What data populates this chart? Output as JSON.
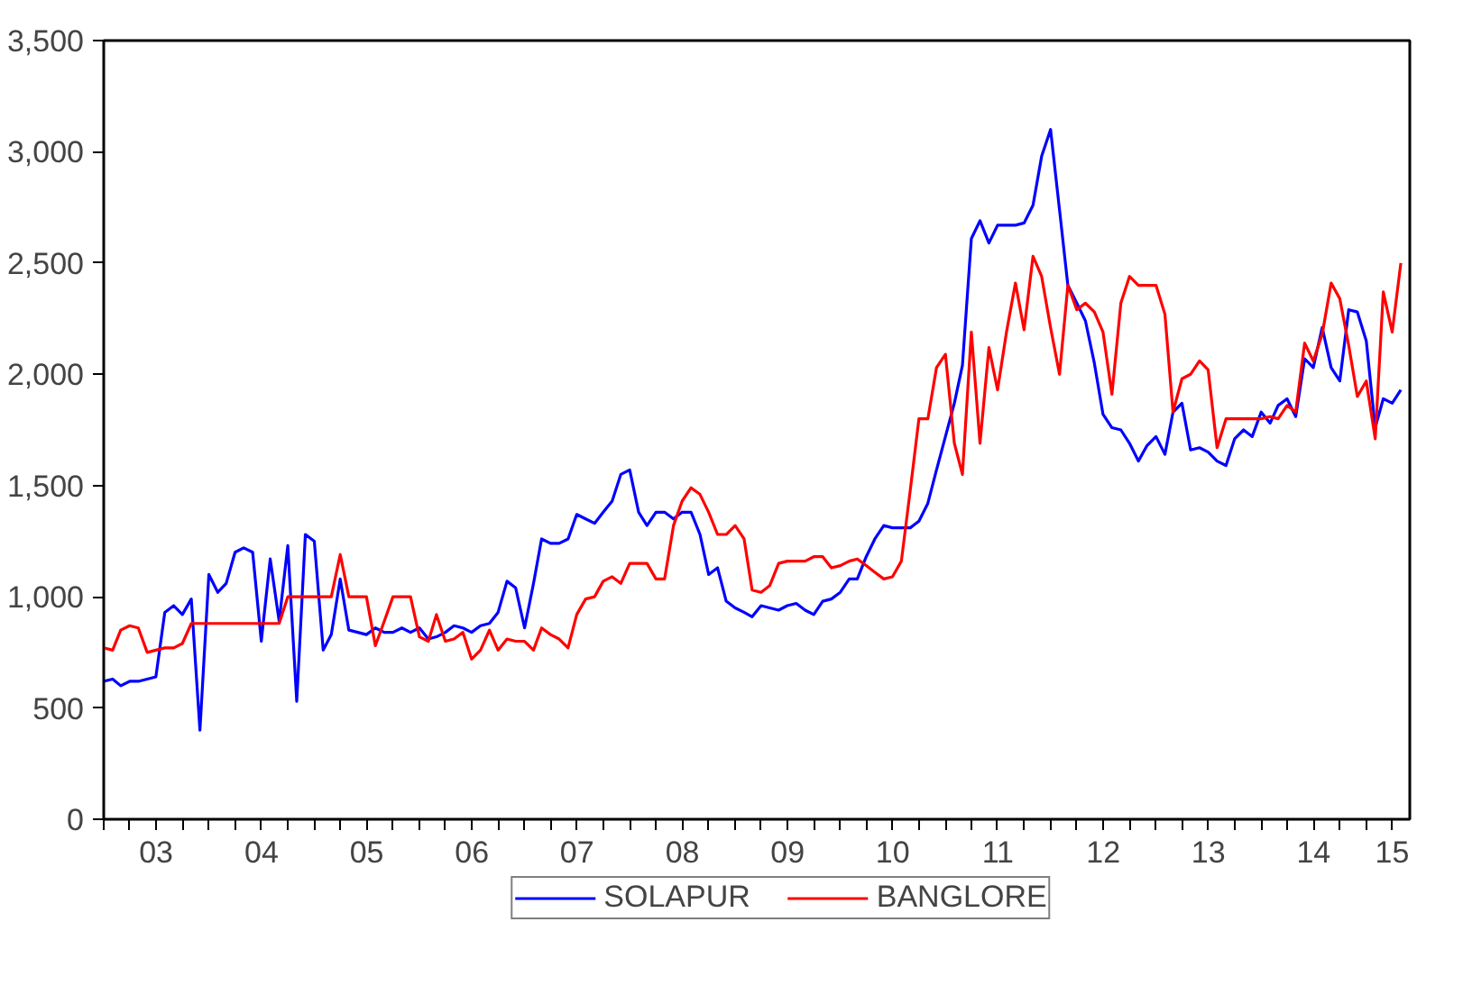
{
  "chart_data": {
    "type": "line",
    "x": [
      "2003-01",
      "2003-02",
      "2003-03",
      "2003-04",
      "2003-05",
      "2003-06",
      "2003-07",
      "2003-08",
      "2003-09",
      "2003-10",
      "2003-11",
      "2003-12",
      "2004-01",
      "2004-02",
      "2004-03",
      "2004-04",
      "2004-05",
      "2004-06",
      "2004-07",
      "2004-08",
      "2004-09",
      "2004-10",
      "2004-11",
      "2004-12",
      "2005-01",
      "2005-02",
      "2005-03",
      "2005-04",
      "2005-05",
      "2005-06",
      "2005-07",
      "2005-08",
      "2005-09",
      "2005-10",
      "2005-11",
      "2005-12",
      "2006-01",
      "2006-02",
      "2006-03",
      "2006-04",
      "2006-05",
      "2006-06",
      "2006-07",
      "2006-08",
      "2006-09",
      "2006-10",
      "2006-11",
      "2006-12",
      "2007-01",
      "2007-02",
      "2007-03",
      "2007-04",
      "2007-05",
      "2007-06",
      "2007-07",
      "2007-08",
      "2007-09",
      "2007-10",
      "2007-11",
      "2007-12",
      "2008-01",
      "2008-02",
      "2008-03",
      "2008-04",
      "2008-05",
      "2008-06",
      "2008-07",
      "2008-08",
      "2008-09",
      "2008-10",
      "2008-11",
      "2008-12",
      "2009-01",
      "2009-02",
      "2009-03",
      "2009-04",
      "2009-05",
      "2009-06",
      "2009-07",
      "2009-08",
      "2009-09",
      "2009-10",
      "2009-11",
      "2009-12",
      "2010-01",
      "2010-02",
      "2010-03",
      "2010-04",
      "2010-05",
      "2010-06",
      "2010-07",
      "2010-08",
      "2010-09",
      "2010-10",
      "2010-11",
      "2010-12",
      "2011-01",
      "2011-02",
      "2011-03",
      "2011-04",
      "2011-05",
      "2011-06",
      "2011-07",
      "2011-08",
      "2011-09",
      "2011-10",
      "2011-11",
      "2011-12",
      "2012-01",
      "2012-02",
      "2012-03",
      "2012-04",
      "2012-05",
      "2012-06",
      "2012-07",
      "2012-08",
      "2012-09",
      "2012-10",
      "2012-11",
      "2012-12",
      "2013-01",
      "2013-02",
      "2013-03",
      "2013-04",
      "2013-05",
      "2013-06",
      "2013-07",
      "2013-08",
      "2013-09",
      "2013-10",
      "2013-11",
      "2013-12",
      "2014-01",
      "2014-02",
      "2014-03",
      "2014-04",
      "2014-05",
      "2014-06",
      "2014-07",
      "2014-08",
      "2014-09",
      "2014-10",
      "2014-11",
      "2014-12",
      "2015-01",
      "2015-02",
      "2015-03",
      "2015-04",
      "2015-05"
    ],
    "series": [
      {
        "name": "SOLAPUR",
        "color": "#0000ff",
        "values": [
          620,
          630,
          600,
          620,
          620,
          630,
          640,
          930,
          960,
          920,
          990,
          400,
          1100,
          1020,
          1060,
          1200,
          1220,
          1200,
          800,
          1170,
          890,
          1230,
          530,
          1280,
          1250,
          760,
          830,
          1080,
          850,
          840,
          830,
          860,
          840,
          840,
          860,
          840,
          860,
          810,
          820,
          840,
          870,
          860,
          840,
          870,
          880,
          930,
          1070,
          1040,
          860,
          1060,
          1260,
          1240,
          1240,
          1260,
          1370,
          1350,
          1330,
          1380,
          1430,
          1550,
          1570,
          1380,
          1320,
          1380,
          1380,
          1350,
          1380,
          1380,
          1280,
          1100,
          1130,
          980,
          950,
          930,
          910,
          960,
          950,
          940,
          960,
          970,
          940,
          920,
          980,
          990,
          1020,
          1080,
          1080,
          1180,
          1260,
          1320,
          1310,
          1310,
          1310,
          1340,
          1420,
          1570,
          1720,
          1870,
          2040,
          2610,
          2690,
          2590,
          2670,
          2670,
          2670,
          2680,
          2760,
          2980,
          3100,
          2740,
          2400,
          2320,
          2240,
          2050,
          1820,
          1760,
          1750,
          1690,
          1610,
          1680,
          1720,
          1640,
          1830,
          1870,
          1660,
          1670,
          1650,
          1610,
          1590,
          1710,
          1750,
          1720,
          1830,
          1780,
          1860,
          1890,
          1810,
          2070,
          2030,
          2210,
          2030,
          1970,
          2290,
          2280,
          2150,
          1760,
          1890,
          1870,
          1930
        ]
      },
      {
        "name": "BANGLORE",
        "color": "#ff0000",
        "values": [
          770,
          760,
          850,
          870,
          860,
          750,
          760,
          770,
          770,
          790,
          880,
          880,
          880,
          880,
          880,
          880,
          880,
          880,
          880,
          880,
          880,
          1000,
          1000,
          1000,
          1000,
          1000,
          1000,
          1190,
          1000,
          1000,
          1000,
          780,
          890,
          1000,
          1000,
          1000,
          820,
          800,
          920,
          800,
          810,
          840,
          720,
          760,
          850,
          760,
          810,
          800,
          800,
          760,
          860,
          830,
          810,
          770,
          920,
          990,
          1000,
          1070,
          1090,
          1060,
          1150,
          1150,
          1150,
          1080,
          1080,
          1320,
          1430,
          1490,
          1460,
          1380,
          1280,
          1280,
          1320,
          1260,
          1030,
          1020,
          1050,
          1150,
          1160,
          1160,
          1160,
          1180,
          1180,
          1130,
          1140,
          1160,
          1170,
          1140,
          1110,
          1080,
          1090,
          1160,
          1480,
          1800,
          1800,
          2030,
          2090,
          1690,
          1550,
          2190,
          1690,
          2120,
          1930,
          2190,
          2410,
          2200,
          2530,
          2440,
          2210,
          2000,
          2400,
          2290,
          2320,
          2280,
          2190,
          1910,
          2320,
          2440,
          2400,
          2400,
          2400,
          2270,
          1830,
          1980,
          2000,
          2060,
          2020,
          1670,
          1800,
          1800,
          1800,
          1800,
          1800,
          1810,
          1800,
          1860,
          1830,
          2140,
          2060,
          2180,
          2410,
          2340,
          2130,
          1900,
          1970,
          1710,
          2370,
          2190,
          2500
        ]
      }
    ],
    "xlim": [
      "2003-01",
      "2015-06"
    ],
    "xticks": [
      {
        "value": "2003-01",
        "label": null
      },
      {
        "value": "2003-04",
        "label": null
      },
      {
        "value": "2003-07",
        "label": null
      },
      {
        "value": "2003-10",
        "label": null
      },
      {
        "value": "2004-01",
        "label": null
      },
      {
        "value": "2004-04",
        "label": null
      },
      {
        "value": "2004-07",
        "label": null
      },
      {
        "value": "2004-10",
        "label": null
      },
      {
        "value": "2005-01",
        "label": null
      },
      {
        "value": "2005-04",
        "label": null
      },
      {
        "value": "2005-07",
        "label": null
      },
      {
        "value": "2005-10",
        "label": null
      },
      {
        "value": "2006-01",
        "label": null
      },
      {
        "value": "2006-04",
        "label": null
      },
      {
        "value": "2006-07",
        "label": null
      },
      {
        "value": "2006-10",
        "label": null
      },
      {
        "value": "2007-01",
        "label": null
      },
      {
        "value": "2007-04",
        "label": null
      },
      {
        "value": "2007-07",
        "label": null
      },
      {
        "value": "2007-10",
        "label": null
      },
      {
        "value": "2008-01",
        "label": null
      },
      {
        "value": "2008-04",
        "label": null
      },
      {
        "value": "2008-07",
        "label": null
      },
      {
        "value": "2008-10",
        "label": null
      },
      {
        "value": "2009-01",
        "label": null
      },
      {
        "value": "2009-04",
        "label": null
      },
      {
        "value": "2009-07",
        "label": null
      },
      {
        "value": "2009-10",
        "label": null
      },
      {
        "value": "2010-01",
        "label": null
      },
      {
        "value": "2010-04",
        "label": null
      },
      {
        "value": "2010-07",
        "label": null
      },
      {
        "value": "2010-10",
        "label": null
      },
      {
        "value": "2011-01",
        "label": null
      },
      {
        "value": "2011-04",
        "label": null
      },
      {
        "value": "2011-07",
        "label": null
      },
      {
        "value": "2011-10",
        "label": null
      },
      {
        "value": "2012-01",
        "label": null
      },
      {
        "value": "2012-04",
        "label": null
      },
      {
        "value": "2012-07",
        "label": null
      },
      {
        "value": "2012-10",
        "label": null
      },
      {
        "value": "2013-01",
        "label": null
      },
      {
        "value": "2013-04",
        "label": null
      },
      {
        "value": "2013-07",
        "label": null
      },
      {
        "value": "2013-10",
        "label": null
      },
      {
        "value": "2014-01",
        "label": null
      },
      {
        "value": "2014-04",
        "label": null
      },
      {
        "value": "2014-07",
        "label": null
      },
      {
        "value": "2014-10",
        "label": null
      },
      {
        "value": "2015-01",
        "label": null
      },
      {
        "value": "2015-04",
        "label": null
      },
      {
        "value": "2003-07-02",
        "label": "03"
      },
      {
        "value": "2004-07-02",
        "label": "04"
      },
      {
        "value": "2005-07-02",
        "label": "05"
      },
      {
        "value": "2006-07-02",
        "label": "06"
      },
      {
        "value": "2007-07-02",
        "label": "07"
      },
      {
        "value": "2008-07-02",
        "label": "08"
      },
      {
        "value": "2009-07-02",
        "label": "09"
      },
      {
        "value": "2010-07-02",
        "label": "10"
      },
      {
        "value": "2011-07-02",
        "label": "11"
      },
      {
        "value": "2012-07-02",
        "label": "12"
      },
      {
        "value": "2013-07-02",
        "label": "13"
      },
      {
        "value": "2014-07-02",
        "label": "14"
      },
      {
        "value": "2015-04-01",
        "label": "15"
      }
    ],
    "ylim": [
      0,
      3500
    ],
    "yticks": [
      0,
      500,
      {
        "value": 1000,
        "label": "1,000"
      },
      {
        "value": 1500,
        "label": "1,500"
      },
      {
        "value": 2000,
        "label": "2,000"
      },
      {
        "value": 2500,
        "label": "2,500"
      },
      {
        "value": 3000,
        "label": "3,000"
      },
      {
        "value": 3500,
        "label": "3,500"
      }
    ],
    "legend": "bottom",
    "line_style": "solid"
  }
}
